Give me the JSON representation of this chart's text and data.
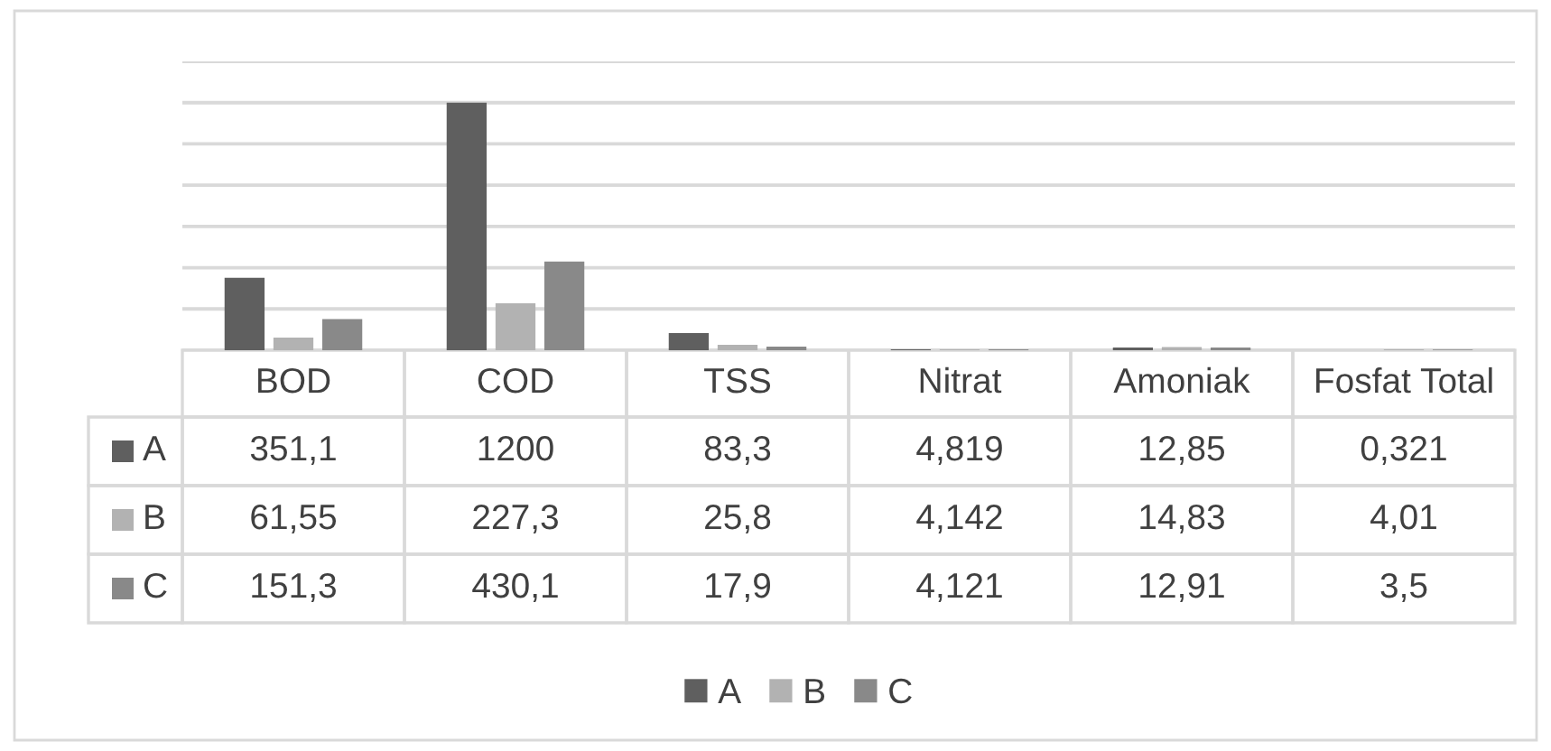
{
  "chart_data": {
    "type": "bar",
    "categories": [
      "BOD",
      "COD",
      "TSS",
      "Nitrat",
      "Amoniak",
      "Fosfat Total"
    ],
    "series": [
      {
        "name": "A",
        "color": "#5f5f5f",
        "values": [
          351.1,
          1200,
          83.3,
          4.819,
          12.85,
          0.321
        ],
        "value_labels": [
          "351,1",
          "1200",
          "83,3",
          "4,819",
          "12,85",
          "0,321"
        ]
      },
      {
        "name": "B",
        "color": "#b2b2b2",
        "values": [
          61.55,
          227.3,
          25.8,
          4.142,
          14.83,
          4.01
        ],
        "value_labels": [
          "61,55",
          "227,3",
          "25,8",
          "4,142",
          "14,83",
          "4,01"
        ]
      },
      {
        "name": "C",
        "color": "#898989",
        "values": [
          151.3,
          430.1,
          17.9,
          4.121,
          12.91,
          3.5
        ],
        "value_labels": [
          "151,3",
          "430,1",
          "17,9",
          "4,121",
          "12,91",
          "3,5"
        ]
      }
    ],
    "ylim": [
      0,
      1400
    ],
    "yticks": [
      {
        "value": 0,
        "label": null
      },
      {
        "value": 200,
        "label": null
      },
      {
        "value": 400,
        "label": null
      },
      {
        "value": 600,
        "label": null
      },
      {
        "value": 800,
        "label": null
      },
      {
        "value": 1000,
        "label": null
      },
      {
        "value": 1200,
        "label": null
      },
      {
        "value": 1400,
        "label": null
      }
    ],
    "grid": "y",
    "legend": "bottom",
    "tick_labels": "x"
  }
}
